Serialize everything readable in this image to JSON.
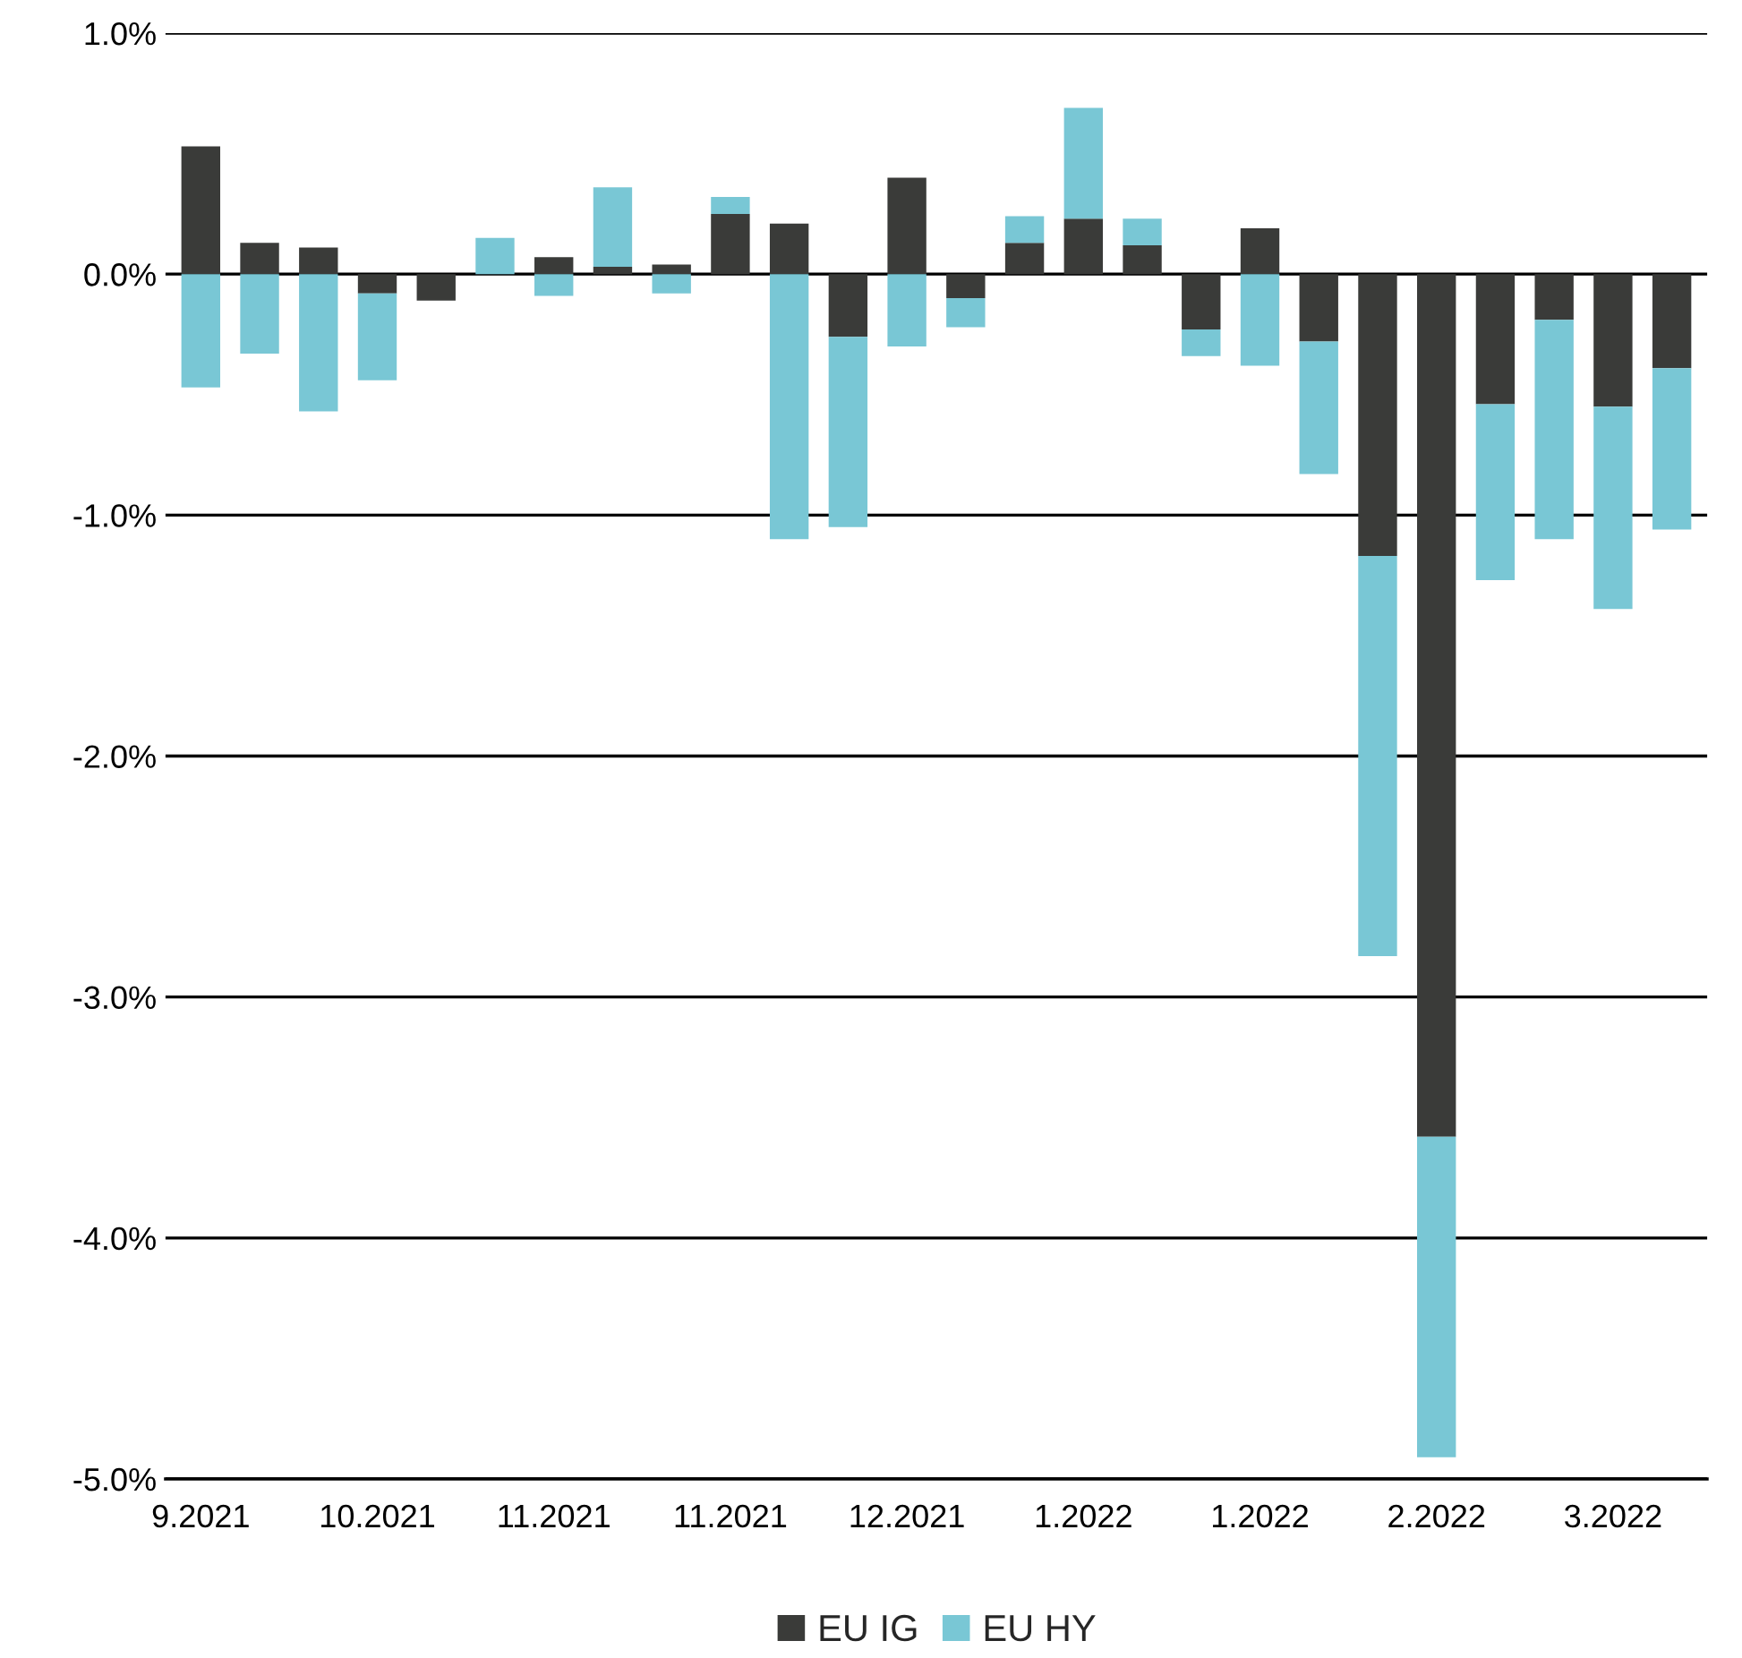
{
  "chart_data": {
    "type": "bar",
    "stacked": true,
    "categories": [
      "9.2021",
      null,
      null,
      "10.2021",
      null,
      null,
      "11.2021",
      null,
      null,
      "11.2021",
      null,
      null,
      "12.2021",
      null,
      null,
      "1.2022",
      null,
      null,
      "1.2022",
      null,
      null,
      "2.2022",
      null,
      null,
      "3.2022",
      null
    ],
    "series": [
      {
        "name": "EU IG",
        "color": "#3a3b39",
        "values": [
          0.53,
          0.13,
          0.11,
          -0.08,
          -0.11,
          null,
          0.07,
          0.03,
          0.04,
          0.25,
          0.21,
          -0.26,
          0.4,
          -0.1,
          0.13,
          0.23,
          0.12,
          -0.23,
          0.19,
          -0.28,
          -1.17,
          -3.58,
          -0.54,
          -0.19,
          -0.55,
          -0.39
        ]
      },
      {
        "name": "EU HY",
        "color": "#79c7d5",
        "values": [
          -0.47,
          -0.33,
          -0.57,
          -0.36,
          null,
          0.15,
          -0.09,
          0.33,
          -0.08,
          0.07,
          -1.1,
          -0.79,
          -0.3,
          -0.12,
          0.11,
          0.46,
          0.11,
          -0.11,
          -0.38,
          -0.55,
          -1.66,
          -1.33,
          -0.73,
          -0.91,
          -0.84,
          -0.67
        ]
      }
    ],
    "ylim": [
      -5,
      1
    ],
    "yticks": [
      {
        "value": -5,
        "label": "-5.0%"
      },
      {
        "value": -4,
        "label": "-4.0%"
      },
      {
        "value": -3,
        "label": "-3.0%"
      },
      {
        "value": -2,
        "label": "-2.0%"
      },
      {
        "value": -1,
        "label": "-1.0%"
      },
      {
        "value": 0,
        "label": "0.0%"
      },
      {
        "value": 1,
        "label": "1.0%"
      }
    ],
    "grid": "y",
    "legend": "bottom"
  }
}
